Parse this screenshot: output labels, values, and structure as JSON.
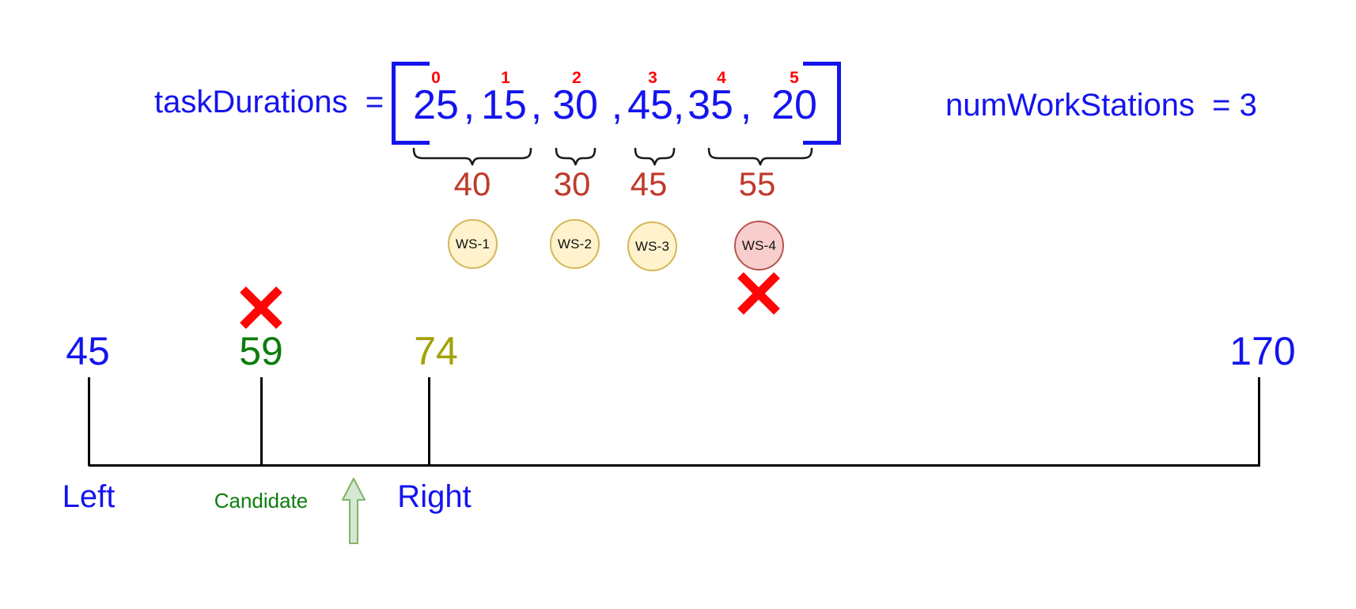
{
  "array_section": {
    "label_text": "taskDurations  =",
    "elements": [
      {
        "index": "0",
        "value": "25"
      },
      {
        "index": "1",
        "value": "15"
      },
      {
        "index": "2",
        "value": "30"
      },
      {
        "index": "3",
        "value": "45"
      },
      {
        "index": "4",
        "value": "35"
      },
      {
        "index": "5",
        "value": "20"
      }
    ],
    "separator": ",",
    "right_text": "numWorkStations  = 3"
  },
  "partitions": [
    {
      "sum": "40",
      "station": "WS-1",
      "rejected": false
    },
    {
      "sum": "30",
      "station": "WS-2",
      "rejected": false
    },
    {
      "sum": "45",
      "station": "WS-3",
      "rejected": false
    },
    {
      "sum": "55",
      "station": "WS-4",
      "rejected": true
    }
  ],
  "number_line": {
    "points": [
      {
        "value": "45",
        "label": "Left",
        "color": "#1414EE"
      },
      {
        "value": "59",
        "label": "Candidate",
        "color": "#0D7D0D",
        "rejected": true
      },
      {
        "value": "74",
        "label": "Right",
        "color": "#A2A209"
      },
      {
        "value": "170",
        "label": "",
        "color": "#1414EE"
      }
    ]
  },
  "colors": {
    "blue": "#1414EE",
    "red": "#FF0505",
    "sum_red": "#C0392B",
    "green": "#0D7D0D",
    "olive": "#A2A209",
    "station_fill": "#FFF2CC",
    "station_border": "#D6B656",
    "rejected_fill": "#F8CECC",
    "rejected_border": "#B85450",
    "arrow_fill": "#D5E8D4",
    "arrow_border": "#82B366"
  }
}
